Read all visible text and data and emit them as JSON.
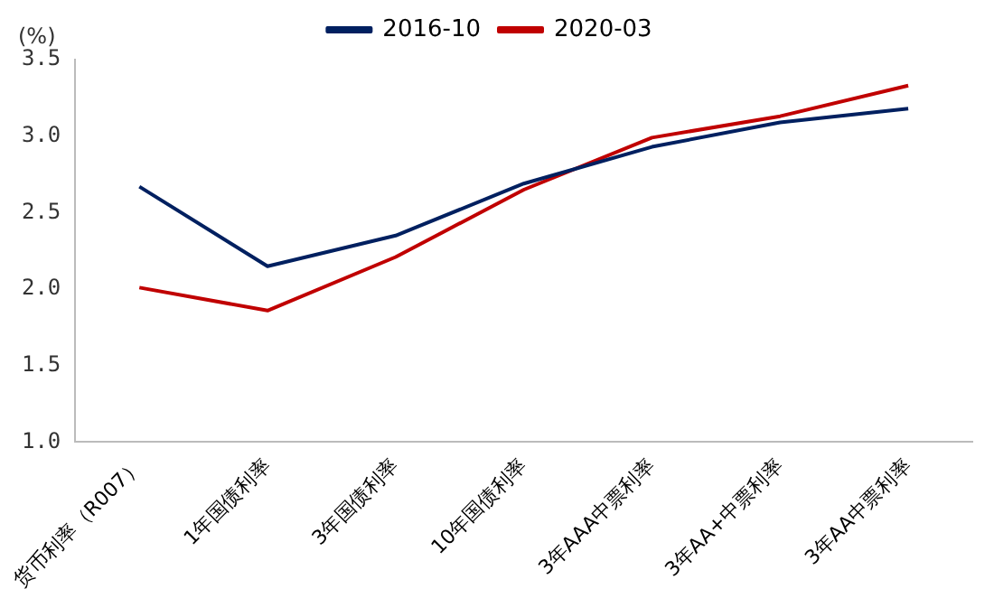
{
  "chart_data": {
    "type": "line",
    "ylabel": "(%)",
    "categories": [
      "货币利率（R007）",
      "1年国债利率",
      "3年国债利率",
      "10年国债利率",
      "3年AAA中票利率",
      "3年AA+中票利率",
      "3年AA中票利率"
    ],
    "series": [
      {
        "name": "2016-10",
        "color": "#002060",
        "values": [
          2.67,
          2.15,
          2.35,
          2.69,
          2.93,
          3.09,
          3.18
        ]
      },
      {
        "name": "2020-03",
        "color": "#c00000",
        "values": [
          2.01,
          1.86,
          2.21,
          2.65,
          2.99,
          3.13,
          3.33
        ]
      }
    ],
    "ylim": [
      1.0,
      3.5
    ],
    "yticks": [
      {
        "value": 1.0,
        "label": "1.0"
      },
      {
        "value": 1.5,
        "label": "1.5"
      },
      {
        "value": 2.0,
        "label": "2.0"
      },
      {
        "value": 2.5,
        "label": "2.5"
      },
      {
        "value": 3.0,
        "label": "3.0"
      },
      {
        "value": 3.5,
        "label": "3.5"
      }
    ],
    "grid": false,
    "legend": "top",
    "marker": "none",
    "line_style": "solid"
  }
}
